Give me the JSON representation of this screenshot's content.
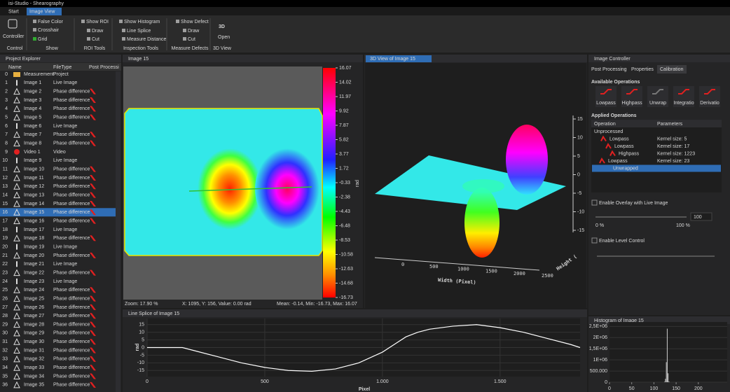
{
  "window": {
    "title": "isi-Studio - Shearography"
  },
  "ribbon": {
    "tabs": [
      "Start",
      "Image View"
    ],
    "groups": [
      {
        "label": "Control",
        "items": [
          "Controller"
        ]
      },
      {
        "label": "Show",
        "items": [
          "False Color",
          "Crosshair",
          "Grid"
        ]
      },
      {
        "label": "ROI Tools",
        "items": [
          "Show ROI",
          "Draw",
          "Cut"
        ]
      },
      {
        "label": "Inspection Tools",
        "items": [
          "Show Histogram",
          "Line Splice",
          "Measure Distance"
        ]
      },
      {
        "label": "Measure Defects",
        "items": [
          "Show Defect",
          "Draw",
          "Cut"
        ]
      },
      {
        "label": "3D View",
        "items": [
          "3D",
          "Open"
        ]
      }
    ]
  },
  "project_explorer": {
    "title": "Project Explorer",
    "columns": [
      "Name",
      "FileType",
      "Post Processi"
    ],
    "rows": [
      [
        0,
        "Measurement",
        "Project"
      ],
      [
        1,
        "Image 1",
        "Live Image"
      ],
      [
        2,
        "Image 2",
        "Phase difference"
      ],
      [
        3,
        "Image 3",
        "Phase difference"
      ],
      [
        4,
        "Image 4",
        "Phase difference"
      ],
      [
        5,
        "Image 5",
        "Phase difference"
      ],
      [
        6,
        "Image 6",
        "Live Image"
      ],
      [
        7,
        "Image 7",
        "Phase difference"
      ],
      [
        8,
        "Image 8",
        "Phase difference"
      ],
      [
        9,
        "Video 1",
        "Video"
      ],
      [
        10,
        "Image 9",
        "Live Image"
      ],
      [
        11,
        "Image 10",
        "Phase difference"
      ],
      [
        12,
        "Image 11",
        "Phase difference"
      ],
      [
        13,
        "Image 12",
        "Phase difference"
      ],
      [
        14,
        "Image 13",
        "Phase difference"
      ],
      [
        15,
        "Image 14",
        "Phase difference"
      ],
      [
        16,
        "Image 15",
        "Phase difference"
      ],
      [
        17,
        "Image 16",
        "Phase difference"
      ],
      [
        18,
        "Image 17",
        "Live Image"
      ],
      [
        19,
        "Image 18",
        "Phase difference"
      ],
      [
        20,
        "Image 19",
        "Live Image"
      ],
      [
        21,
        "Image 20",
        "Phase difference"
      ],
      [
        22,
        "Image 21",
        "Live Image"
      ],
      [
        23,
        "Image 22",
        "Phase difference"
      ],
      [
        24,
        "Image 23",
        "Live Image"
      ],
      [
        25,
        "Image 24",
        "Phase difference"
      ],
      [
        26,
        "Image 25",
        "Phase difference"
      ],
      [
        27,
        "Image 26",
        "Phase difference"
      ],
      [
        28,
        "Image 27",
        "Phase difference"
      ],
      [
        29,
        "Image 28",
        "Phase difference"
      ],
      [
        30,
        "Image 29",
        "Phase difference"
      ],
      [
        31,
        "Image 30",
        "Phase difference"
      ],
      [
        32,
        "Image 31",
        "Phase difference"
      ],
      [
        33,
        "Image 32",
        "Phase difference"
      ],
      [
        34,
        "Image 33",
        "Phase difference"
      ],
      [
        35,
        "Image 34",
        "Phase difference"
      ],
      [
        36,
        "Image 35",
        "Phase difference"
      ]
    ],
    "selected": 16
  },
  "image_view": {
    "tab": "Image 15",
    "colorbar": {
      "label": "rad",
      "ticks": [
        16.07,
        14.02,
        11.97,
        9.92,
        7.87,
        5.82,
        3.77,
        1.72,
        -0.33,
        -2.38,
        -4.43,
        -6.48,
        -8.53,
        -10.58,
        -12.63,
        -14.68,
        -16.73
      ]
    },
    "status": [
      "Zoom: 17.90 %",
      "X: 1095, Y: 156, Value: 0.00 rad",
      "Mean: -0.14, Min: -16.73, Max: 16.07"
    ]
  },
  "view_3d": {
    "tab": "3D View of Image 15",
    "x_label": "Width (Pixel)",
    "x_ticks": [
      0,
      500,
      1000,
      1500,
      2000,
      2500
    ],
    "y_label": "Height (",
    "z_ticks": [
      15,
      10,
      5,
      0,
      -5,
      -10,
      -15
    ]
  },
  "image_controller": {
    "title": "Image Controller",
    "tabs": [
      "Post Processing",
      "Properties",
      "Calibration"
    ],
    "available_title": "Available Operations",
    "operations": [
      "Lowpass",
      "Highpass",
      "Unwrap",
      "Integratio",
      "Derivatio"
    ],
    "applied_title": "Applied Operations",
    "applied_columns": [
      "Operation",
      "Parameters"
    ],
    "applied_rows": [
      {
        "op": "Unprocessed"
      },
      {
        "op": "Lowpass",
        "param": "Kernel size: 5"
      },
      {
        "op": "Lowpass",
        "param": "Kernel size: 17"
      },
      {
        "op": "Highpass",
        "param": "Kernel size: 1223"
      },
      {
        "op": "Lowpass",
        "param": "Kernel size: 23"
      },
      {
        "op": "Unwrapped"
      }
    ],
    "overlay_label": "Enable Overlay with Live Image",
    "overlay_min": "0 %",
    "overlay_max": "100 %",
    "overlay_value": 100,
    "level_label": "Enable Level Control"
  },
  "line_splice": {
    "type": "line",
    "title": "Line Splice of Image 15",
    "x_label": "Pixel",
    "y_label": "rad",
    "color": "#ffffff",
    "x": [
      0,
      150,
      200,
      300,
      400,
      500,
      600,
      700,
      800,
      900,
      1000,
      1050,
      1100,
      1150,
      1200,
      1300,
      1400,
      1500,
      1600,
      1700,
      1800,
      1840
    ],
    "values": [
      0,
      0,
      -2,
      -6,
      -10,
      -13,
      -15,
      -15.5,
      -14,
      -10,
      -3,
      2,
      7,
      10,
      12,
      14,
      15,
      13,
      10,
      6,
      2,
      0
    ],
    "xlim": [
      0,
      1840
    ],
    "ylim": [
      -19,
      19
    ],
    "xticks": [
      0,
      500,
      {
        "value": 1000,
        "label": "1.000"
      },
      {
        "value": 1500,
        "label": "1.500"
      }
    ],
    "yticks": [
      -15,
      -10,
      -5,
      0,
      5,
      10,
      15
    ]
  },
  "histogram": {
    "type": "bar",
    "title": "Histogram of Image 15",
    "color": "#cccccc",
    "x": [
      124,
      126,
      128,
      130,
      132,
      134
    ],
    "values": [
      20000,
      150000,
      900000,
      2400000,
      400000,
      30000
    ],
    "xlim": [
      0,
      265
    ],
    "ylim": [
      0,
      2700000
    ],
    "xticks": [
      0,
      50,
      100,
      150,
      200
    ],
    "yticks": [
      0,
      {
        "value": 500000,
        "label": "500.000"
      },
      {
        "value": 1000000,
        "label": "1E+06"
      },
      {
        "value": 1500000,
        "label": "1,5E+06"
      },
      {
        "value": 2000000,
        "label": "2E+06"
      },
      {
        "value": 2500000,
        "label": "2,5E+06"
      }
    ]
  }
}
